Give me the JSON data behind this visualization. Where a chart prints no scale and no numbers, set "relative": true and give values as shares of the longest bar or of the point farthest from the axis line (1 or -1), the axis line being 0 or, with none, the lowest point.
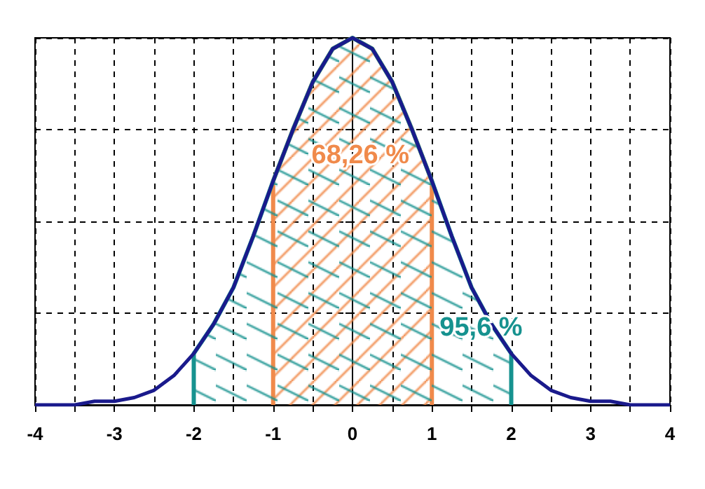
{
  "chart_data": {
    "type": "line",
    "relative": true,
    "x": [
      -4,
      -3.75,
      -3.5,
      -3.25,
      -3,
      -2.75,
      -2.5,
      -2.25,
      -2,
      -1.75,
      -1.5,
      -1.25,
      -1,
      -0.75,
      -0.5,
      -0.25,
      0,
      0.25,
      0.5,
      0.75,
      1,
      1.25,
      1.5,
      1.75,
      2,
      2.25,
      2.5,
      2.75,
      3,
      3.25,
      3.5,
      3.75,
      4
    ],
    "series": [
      {
        "type": "area",
        "color": "#16928f",
        "x": [
          -2,
          -2,
          -1.75,
          -1.5,
          -1.25,
          -1,
          -0.75,
          -0.5,
          -0.25,
          0,
          0.25,
          0.5,
          0.75,
          1,
          1.25,
          1.5,
          1.75,
          2,
          2
        ],
        "values": [
          0,
          0.14,
          0.22,
          0.32,
          0.46,
          0.61,
          0.75,
          0.88,
          0.97,
          1,
          0.97,
          0.88,
          0.75,
          0.61,
          0.46,
          0.32,
          0.22,
          0.14,
          0
        ]
      },
      {
        "type": "area",
        "color": "#f08a4b",
        "x": [
          -1,
          -1,
          -0.75,
          -0.5,
          -0.25,
          0,
          0.25,
          0.5,
          0.75,
          1,
          1
        ],
        "values": [
          0,
          0.61,
          0.75,
          0.88,
          0.97,
          1,
          0.97,
          0.88,
          0.75,
          0.61,
          0
        ]
      },
      {
        "color": "#1a1a8c",
        "values": [
          0,
          0,
          0,
          0.01,
          0.01,
          0.02,
          0.04,
          0.08,
          0.14,
          0.22,
          0.32,
          0.46,
          0.61,
          0.75,
          0.88,
          0.97,
          1,
          0.97,
          0.88,
          0.75,
          0.61,
          0.46,
          0.32,
          0.22,
          0.14,
          0.08,
          0.04,
          0.02,
          0.01,
          0.01,
          0,
          0,
          0
        ]
      }
    ],
    "xlim": [
      -4,
      4
    ],
    "xticks": [
      -4,
      -3,
      -2,
      -1,
      0,
      1,
      2,
      3,
      4
    ],
    "annotations": [
      "95,6 %",
      "68,26 %"
    ],
    "grid": true,
    "marker": "none",
    "line_style": "solid"
  }
}
